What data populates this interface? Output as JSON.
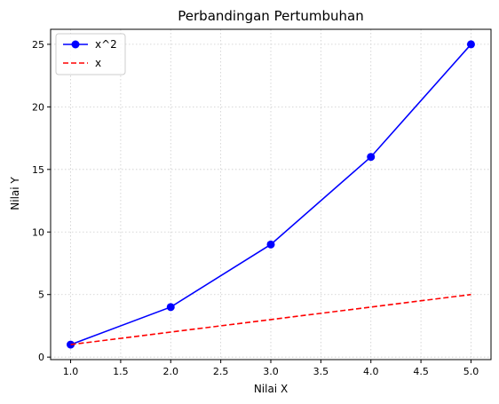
{
  "chart_data": {
    "type": "line",
    "title": "Perbandingan Pertumbuhan",
    "xlabel": "Nilai X",
    "ylabel": "Nilai Y",
    "xlim": [
      0.8,
      5.2
    ],
    "ylim": [
      -0.2,
      26.2
    ],
    "xticks": [
      1.0,
      1.5,
      2.0,
      2.5,
      3.0,
      3.5,
      4.0,
      4.5,
      5.0
    ],
    "xtick_labels": [
      "1.0",
      "1.5",
      "2.0",
      "2.5",
      "3.0",
      "3.5",
      "4.0",
      "4.5",
      "5.0"
    ],
    "yticks": [
      0,
      5,
      10,
      15,
      20,
      25
    ],
    "ytick_labels": [
      "0",
      "5",
      "10",
      "15",
      "20",
      "25"
    ],
    "grid": true,
    "legend_position": "top-left",
    "x": [
      1,
      2,
      3,
      4,
      5
    ],
    "series": [
      {
        "name": "x^2",
        "values": [
          1,
          4,
          9,
          16,
          25
        ],
        "color": "#0000ff",
        "linestyle": "solid",
        "marker": "circle"
      },
      {
        "name": "x",
        "values": [
          1,
          2,
          3,
          4,
          5
        ],
        "color": "#ff0000",
        "linestyle": "dashed",
        "marker": "none"
      }
    ]
  }
}
